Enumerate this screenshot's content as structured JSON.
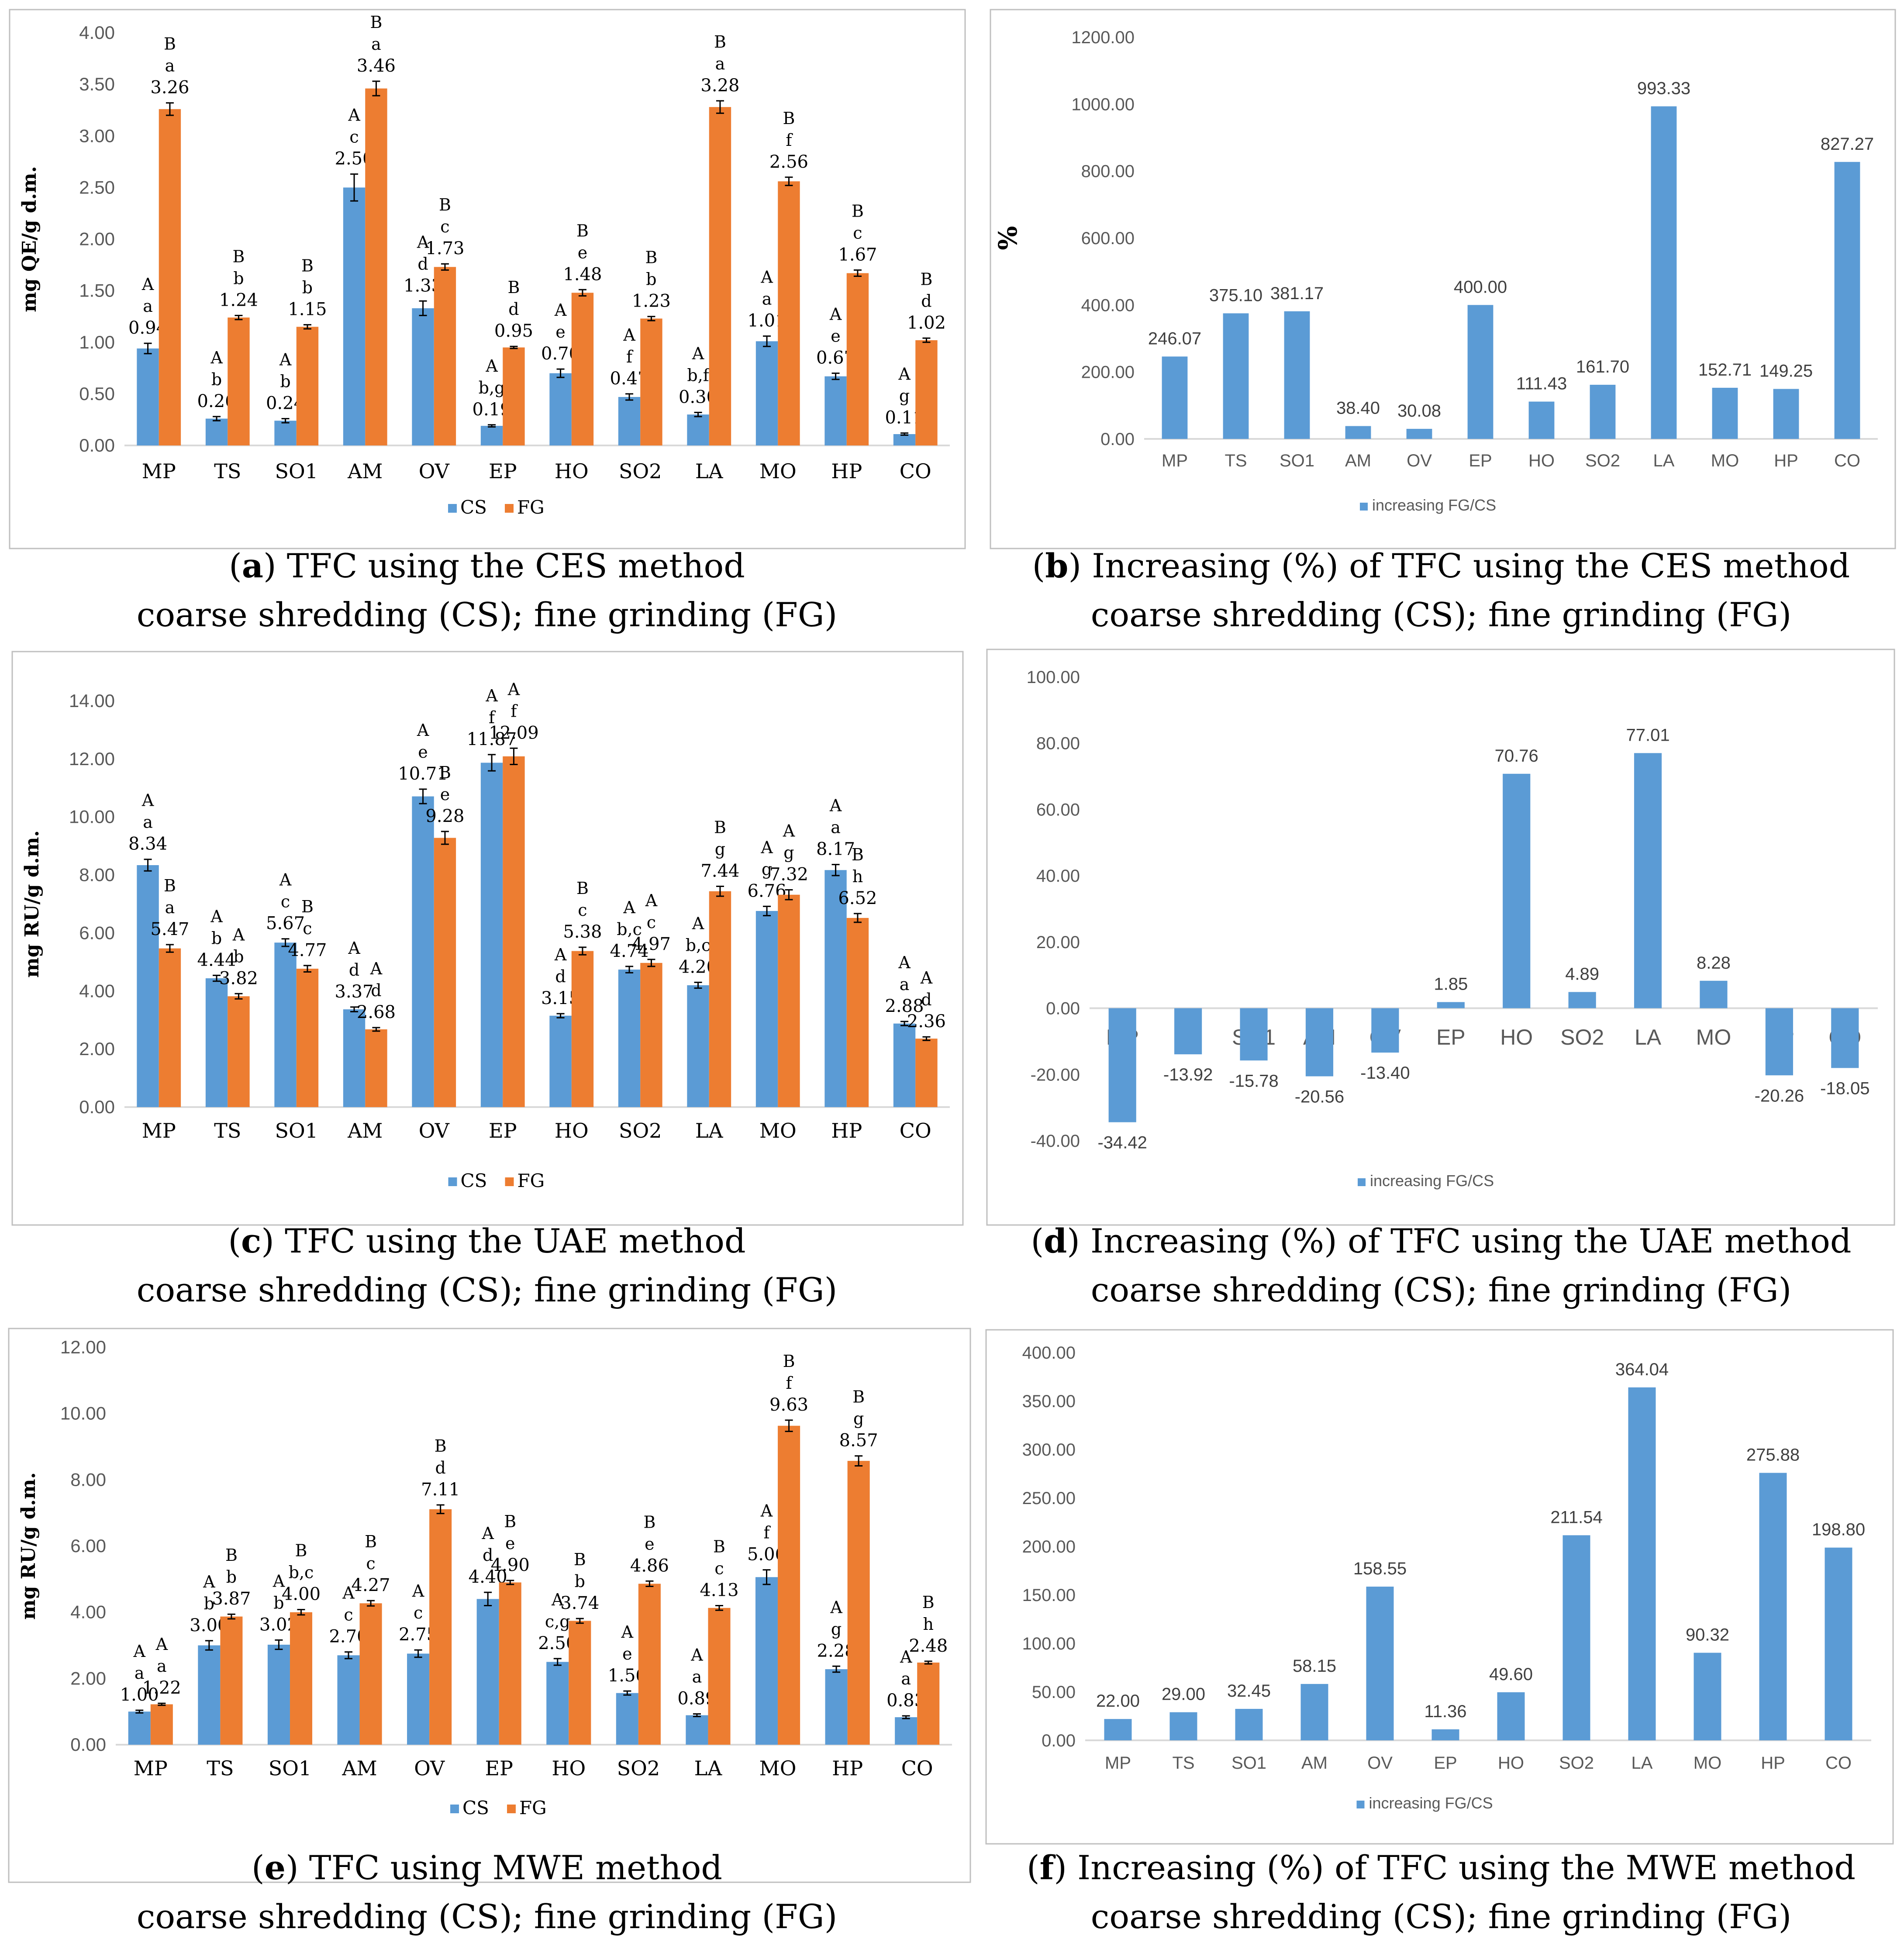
{
  "colors": {
    "cs": "#5b9bd5",
    "fg": "#ed7d31"
  },
  "categories": [
    "MP",
    "TS",
    "SO1",
    "AM",
    "OV",
    "EP",
    "HO",
    "SO2",
    "LA",
    "MO",
    "HP",
    "CO"
  ],
  "chart_data": [
    {
      "id": "a",
      "type": "bar",
      "ylabel": "mg QE/g d.m.",
      "ylim": [
        0,
        4
      ],
      "yticks": [
        "0.00",
        "0.50",
        "1.00",
        "1.50",
        "2.00",
        "2.50",
        "3.00",
        "3.50",
        "4.00"
      ],
      "legend": [
        "CS",
        "FG"
      ],
      "series": [
        {
          "name": "CS",
          "values": [
            0.94,
            0.26,
            0.24,
            2.5,
            1.33,
            0.19,
            0.7,
            0.47,
            0.3,
            1.01,
            0.67,
            0.11
          ],
          "labels": [
            "0.94",
            "0.26",
            "0.24",
            "2.50",
            "1.33",
            "0.19",
            "0.70",
            "0.47",
            "0.30",
            "1.01",
            "0.67",
            "0.11"
          ],
          "errors": [
            0.05,
            0.02,
            0.02,
            0.13,
            0.07,
            0.01,
            0.04,
            0.03,
            0.02,
            0.05,
            0.03,
            0.01
          ],
          "letters": [
            [
              "A",
              "a"
            ],
            [
              "A",
              "b"
            ],
            [
              "A",
              "b"
            ],
            [
              "A",
              "c"
            ],
            [
              "A",
              "d"
            ],
            [
              "A",
              "b,g"
            ],
            [
              "A",
              "e"
            ],
            [
              "A",
              "f"
            ],
            [
              "A",
              "b,f"
            ],
            [
              "A",
              "a"
            ],
            [
              "A",
              "e"
            ],
            [
              "A",
              "g"
            ]
          ]
        },
        {
          "name": "FG",
          "values": [
            3.26,
            1.24,
            1.15,
            3.46,
            1.73,
            0.95,
            1.48,
            1.23,
            3.28,
            2.56,
            1.67,
            1.02
          ],
          "labels": [
            "3.26",
            "1.24",
            "1.15",
            "3.46",
            "1.73",
            "0.95",
            "1.48",
            "1.23",
            "3.28",
            "2.56",
            "1.67",
            "1.02"
          ],
          "errors": [
            0.06,
            0.02,
            0.02,
            0.07,
            0.03,
            0.01,
            0.03,
            0.02,
            0.06,
            0.04,
            0.03,
            0.02
          ],
          "letters": [
            [
              "B",
              "a"
            ],
            [
              "B",
              "b"
            ],
            [
              "B",
              "b"
            ],
            [
              "B",
              "a"
            ],
            [
              "B",
              "c"
            ],
            [
              "B",
              "d"
            ],
            [
              "B",
              "e"
            ],
            [
              "B",
              "b"
            ],
            [
              "B",
              "a"
            ],
            [
              "B",
              "f"
            ],
            [
              "B",
              "c"
            ],
            [
              "B",
              "d"
            ]
          ]
        }
      ],
      "caption_letter": "a",
      "caption_line1": ") TFC using the CES method",
      "caption_line2": "coarse shredding (CS); fine grinding (FG)"
    },
    {
      "id": "b",
      "type": "bar",
      "ylabel": "%",
      "ylim": [
        0,
        1200
      ],
      "yticks": [
        "0.00",
        "200.00",
        "400.00",
        "600.00",
        "800.00",
        "1000.00",
        "1200.00"
      ],
      "legend": [
        "increasing FG/CS"
      ],
      "values": [
        246.07,
        375.1,
        381.17,
        38.4,
        30.08,
        400.0,
        111.43,
        161.7,
        993.33,
        152.71,
        149.25,
        827.27
      ],
      "labels": [
        "246.07",
        "375.10",
        "381.17",
        "38.40",
        "30.08",
        "400.00",
        "111.43",
        "161.70",
        "993.33",
        "152.71",
        "149.25",
        "827.27"
      ],
      "caption_letter": "b",
      "caption_line1": ") Increasing (%) of TFC using the CES method",
      "caption_line2": "coarse shredding (CS); fine grinding (FG)"
    },
    {
      "id": "c",
      "type": "bar",
      "ylabel": "mg RU/g d.m.",
      "ylim": [
        0,
        14
      ],
      "yticks": [
        "0.00",
        "2.00",
        "4.00",
        "6.00",
        "8.00",
        "10.00",
        "12.00",
        "14.00"
      ],
      "legend": [
        "CS",
        "FG"
      ],
      "series": [
        {
          "name": "CS",
          "values": [
            8.34,
            4.44,
            5.67,
            3.37,
            10.71,
            11.87,
            3.15,
            4.74,
            4.2,
            6.76,
            8.17,
            2.88
          ],
          "labels": [
            "8.34",
            "4.44",
            "5.67",
            "3.37",
            "10.71",
            "11.87",
            "3.15",
            "4.74",
            "4.20",
            "6.76",
            "8.17",
            "2.88"
          ],
          "errors": [
            0.2,
            0.1,
            0.13,
            0.08,
            0.25,
            0.28,
            0.07,
            0.11,
            0.1,
            0.16,
            0.19,
            0.07
          ],
          "letters": [
            [
              "A",
              "a"
            ],
            [
              "A",
              "b"
            ],
            [
              "A",
              "c"
            ],
            [
              "A",
              "d"
            ],
            [
              "A",
              "e"
            ],
            [
              "A",
              "f"
            ],
            [
              "A",
              "d"
            ],
            [
              "A",
              "b,c"
            ],
            [
              "A",
              "b,c"
            ],
            [
              "A",
              "g"
            ],
            [
              "A",
              "a"
            ],
            [
              "A",
              "a"
            ]
          ]
        },
        {
          "name": "FG",
          "values": [
            5.47,
            3.82,
            4.77,
            2.68,
            9.28,
            12.09,
            5.38,
            4.97,
            7.44,
            7.32,
            6.52,
            2.36
          ],
          "labels": [
            "5.47",
            "3.82",
            "4.77",
            "2.68",
            "9.28",
            "12.09",
            "5.38",
            "4.97",
            "7.44",
            "7.32",
            "6.52",
            "2.36"
          ],
          "errors": [
            0.13,
            0.09,
            0.11,
            0.06,
            0.22,
            0.28,
            0.13,
            0.12,
            0.17,
            0.17,
            0.15,
            0.06
          ],
          "letters": [
            [
              "B",
              "a"
            ],
            [
              "A",
              "b"
            ],
            [
              "B",
              "c"
            ],
            [
              "A",
              "d"
            ],
            [
              "B",
              "e"
            ],
            [
              "A",
              "f"
            ],
            [
              "B",
              "c"
            ],
            [
              "A",
              "c"
            ],
            [
              "B",
              "g"
            ],
            [
              "A",
              "g"
            ],
            [
              "B",
              "h"
            ],
            [
              "A",
              "d"
            ]
          ]
        }
      ],
      "caption_letter": "c",
      "caption_line1": ") TFC using the UAE method",
      "caption_line2": "coarse shredding (CS); fine grinding (FG)"
    },
    {
      "id": "d",
      "type": "bar",
      "ylabel": "",
      "ylim": [
        -40,
        100
      ],
      "yticks": [
        "-40.00",
        "-20.00",
        "0.00",
        "20.00",
        "40.00",
        "60.00",
        "80.00",
        "100.00"
      ],
      "legend": [
        "increasing FG/CS"
      ],
      "values": [
        -34.42,
        -13.92,
        -15.78,
        -20.56,
        -13.4,
        1.85,
        70.76,
        4.89,
        77.01,
        8.28,
        -20.26,
        -18.05
      ],
      "labels": [
        "-34.42",
        "-13.92",
        "-15.78",
        "-20.56",
        "-13.40",
        "1.85",
        "70.76",
        "4.89",
        "77.01",
        "8.28",
        "-20.26",
        "-18.05"
      ],
      "caption_letter": "d",
      "caption_line1": ") Increasing (%) of TFC using the UAE method",
      "caption_line2": "coarse shredding (CS); fine grinding (FG)"
    },
    {
      "id": "e",
      "type": "bar",
      "ylabel": "mg RU/g d.m.",
      "ylim": [
        0,
        12
      ],
      "yticks": [
        "0.00",
        "2.00",
        "4.00",
        "6.00",
        "8.00",
        "10.00",
        "12.00"
      ],
      "legend": [
        "CS",
        "FG"
      ],
      "series": [
        {
          "name": "CS",
          "values": [
            1.0,
            3.0,
            3.02,
            2.7,
            2.75,
            4.4,
            2.5,
            1.56,
            0.89,
            5.06,
            2.28,
            0.83
          ],
          "labels": [
            "1.00",
            "3.00",
            "3.02",
            "2.70",
            "2.75",
            "4.40",
            "2.50",
            "1.56",
            "0.89",
            "5.06",
            "2.28",
            "0.83"
          ],
          "errors": [
            0.04,
            0.14,
            0.14,
            0.1,
            0.11,
            0.2,
            0.1,
            0.06,
            0.04,
            0.22,
            0.09,
            0.04
          ],
          "letters": [
            [
              "A",
              "a"
            ],
            [
              "A",
              "b"
            ],
            [
              "A",
              "b"
            ],
            [
              "A",
              "c"
            ],
            [
              "A",
              "c"
            ],
            [
              "A",
              "d"
            ],
            [
              "A",
              "c,g"
            ],
            [
              "A",
              "e"
            ],
            [
              "A",
              "a"
            ],
            [
              "A",
              "f"
            ],
            [
              "A",
              "g"
            ],
            [
              "A",
              "a"
            ]
          ]
        },
        {
          "name": "FG",
          "values": [
            1.22,
            3.87,
            4.0,
            4.27,
            7.11,
            4.9,
            3.74,
            4.86,
            4.13,
            9.63,
            8.57,
            2.48
          ],
          "labels": [
            "1.22",
            "3.87",
            "4.00",
            "4.27",
            "7.11",
            "4.90",
            "3.74",
            "4.86",
            "4.13",
            "9.63",
            "8.57",
            "2.48"
          ],
          "errors": [
            0.03,
            0.07,
            0.08,
            0.08,
            0.13,
            0.06,
            0.07,
            0.08,
            0.07,
            0.17,
            0.15,
            0.04
          ],
          "letters": [
            [
              "A",
              "a"
            ],
            [
              "B",
              "b"
            ],
            [
              "B",
              "b,c"
            ],
            [
              "B",
              "c"
            ],
            [
              "B",
              "d"
            ],
            [
              "B",
              "e"
            ],
            [
              "B",
              "b"
            ],
            [
              "B",
              "e"
            ],
            [
              "B",
              "c"
            ],
            [
              "B",
              "f"
            ],
            [
              "B",
              "g"
            ],
            [
              "B",
              "h"
            ]
          ]
        }
      ],
      "caption_letter": "e",
      "caption_line1": ") TFC using MWE method",
      "caption_line2": "coarse shredding (CS); fine grinding (FG)"
    },
    {
      "id": "f",
      "type": "bar",
      "ylabel": "",
      "ylim": [
        0,
        400
      ],
      "yticks": [
        "0.00",
        "50.00",
        "100.00",
        "150.00",
        "200.00",
        "250.00",
        "300.00",
        "350.00",
        "400.00"
      ],
      "legend": [
        "increasing FG/CS"
      ],
      "values": [
        22.0,
        29.0,
        32.45,
        58.15,
        158.55,
        11.36,
        49.6,
        211.54,
        364.04,
        90.32,
        275.88,
        198.8
      ],
      "labels": [
        "22.00",
        "29.00",
        "32.45",
        "58.15",
        "158.55",
        "11.36",
        "49.60",
        "211.54",
        "364.04",
        "90.32",
        "275.88",
        "198.80"
      ],
      "caption_letter": "f",
      "caption_line1": ") Increasing (%) of TFC using the MWE method",
      "caption_line2": "coarse shredding (CS); fine grinding (FG)"
    }
  ]
}
